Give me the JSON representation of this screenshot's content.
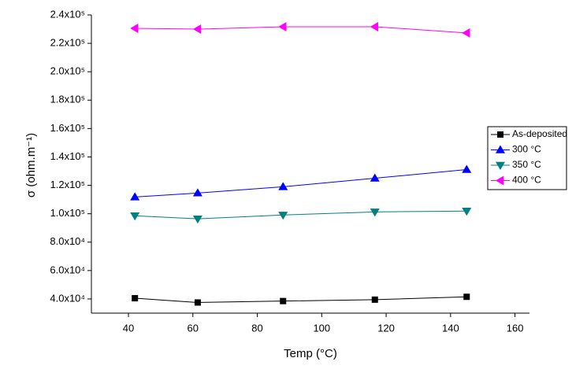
{
  "chart_data": {
    "type": "line",
    "x_label": "Temp (°C)",
    "y_label": "σ (ohm.m⁻¹)",
    "x": [
      42,
      61.5,
      88,
      116.5,
      145
    ],
    "series": [
      {
        "name": "As-deposited",
        "color": "#000000",
        "marker": "square",
        "values": [
          40500,
          37500,
          38500,
          39500,
          41500
        ]
      },
      {
        "name": "300 °C",
        "color": "#0000ff",
        "marker": "triangle-up",
        "values": [
          111800,
          114600,
          119000,
          125000,
          131100
        ]
      },
      {
        "name": "350 °C",
        "color": "#008080",
        "marker": "triangle-down",
        "values": [
          98600,
          96400,
          99100,
          101300,
          101900
        ]
      },
      {
        "name": "400 °C",
        "color": "#ff00ff",
        "marker": "triangle-left",
        "values": [
          230600,
          230000,
          231700,
          231700,
          227300
        ]
      }
    ],
    "xlim": [
      28.5,
      164.5
    ],
    "xticks": [
      40,
      60,
      80,
      100,
      120,
      140,
      160
    ],
    "ylim": [
      30000,
      240000
    ],
    "yticks": [
      {
        "value": 40000,
        "label": "4.0x10⁴"
      },
      {
        "value": 60000,
        "label": "6.0x10⁴"
      },
      {
        "value": 80000,
        "label": "8.0x10⁴"
      },
      {
        "value": 100000,
        "label": "1.0x10⁵"
      },
      {
        "value": 120000,
        "label": "1.2x10⁵"
      },
      {
        "value": 140000,
        "label": "1.4x10⁵"
      },
      {
        "value": 160000,
        "label": "1.6x10⁵"
      },
      {
        "value": 180000,
        "label": "1.8x10⁵"
      },
      {
        "value": 200000,
        "label": "2.0x10⁵"
      },
      {
        "value": 220000,
        "label": "2.2x10⁵"
      },
      {
        "value": 240000,
        "label": "2.4x10⁵"
      }
    ],
    "legend": "right"
  }
}
